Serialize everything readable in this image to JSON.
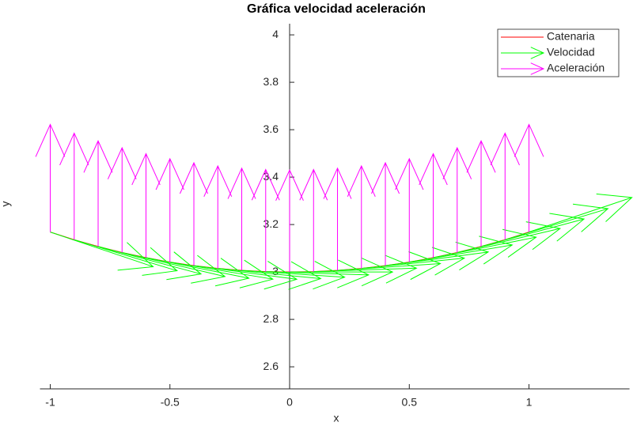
{
  "chart_data": {
    "type": "quiver",
    "title": "Gráfica velocidad aceleración",
    "xlabel": "x",
    "ylabel": "y",
    "xlim": [
      -1.043,
      1.42
    ],
    "ylim": [
      2.507,
      4.047
    ],
    "xticks": [
      -1,
      -0.5,
      0,
      0.5,
      1
    ],
    "yticks": [
      2.6,
      2.8,
      3,
      3.2,
      3.4,
      3.6,
      3.8,
      4
    ],
    "legend": "upper right",
    "x": [
      -1,
      -0.9,
      -0.8,
      -0.7,
      -0.6,
      -0.5,
      -0.4,
      -0.3,
      -0.2,
      -0.1,
      0,
      0.1,
      0.2,
      0.3,
      0.4,
      0.5,
      0.6,
      0.7,
      0.8,
      0.9,
      1
    ],
    "y": [
      3.1682,
      3.136,
      3.1074,
      3.0821,
      3.0602,
      3.0417,
      3.0267,
      3.015,
      3.0067,
      3.0017,
      3,
      3.0017,
      3.0067,
      3.015,
      3.0267,
      3.0417,
      3.0602,
      3.0821,
      3.1074,
      3.136,
      3.1682
    ],
    "series": [
      {
        "name": "Catenaria",
        "kind": "line",
        "color": "#ff0000"
      },
      {
        "name": "Velocidad",
        "kind": "arrows",
        "color": "#00ff00",
        "u": [
          0.43,
          0.43,
          0.43,
          0.43,
          0.43,
          0.43,
          0.43,
          0.43,
          0.43,
          0.43,
          0.43,
          0.43,
          0.43,
          0.43,
          0.43,
          0.43,
          0.43,
          0.43,
          0.43,
          0.43,
          0.43
        ],
        "v": [
          -0.146,
          -0.1309,
          -0.116,
          -0.1012,
          -0.0866,
          -0.072,
          -0.0575,
          -0.0431,
          -0.0287,
          -0.0143,
          0,
          0.0143,
          0.0287,
          0.0431,
          0.0575,
          0.072,
          0.0866,
          0.1012,
          0.116,
          0.1309,
          0.146
        ]
      },
      {
        "name": "Aceleración",
        "kind": "arrows",
        "color": "#ff00ff",
        "u": [
          0,
          0,
          0,
          0,
          0,
          0,
          0,
          0,
          0,
          0,
          0,
          0,
          0,
          0,
          0,
          0,
          0,
          0,
          0,
          0,
          0
        ],
        "v": [
          0.4541,
          0.4495,
          0.4454,
          0.4418,
          0.4386,
          0.436,
          0.4338,
          0.4322,
          0.431,
          0.4302,
          0.43,
          0.4302,
          0.431,
          0.4322,
          0.4338,
          0.436,
          0.4386,
          0.4418,
          0.4454,
          0.4495,
          0.4541
        ]
      }
    ]
  }
}
